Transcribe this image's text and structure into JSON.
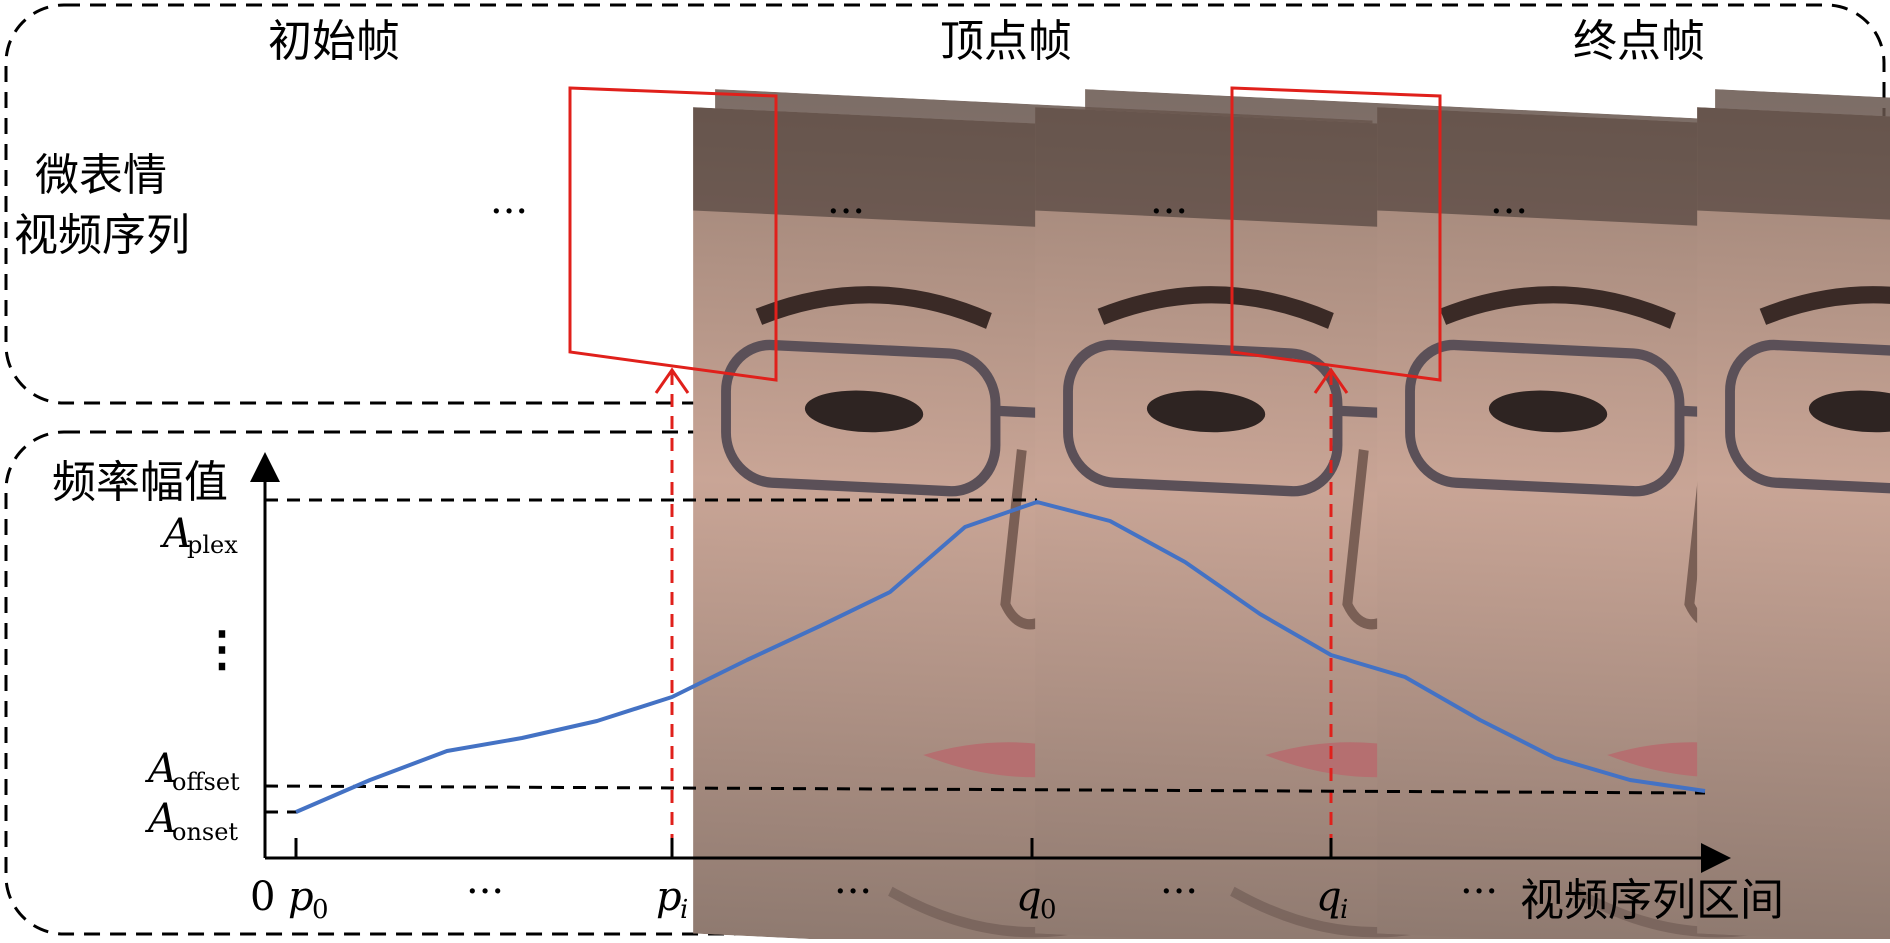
{
  "sequence_panel": {
    "row_label_line1": "微表情",
    "row_label_line2": "视频序列",
    "frame_titles": {
      "onset": "初始帧",
      "apex": "顶点帧",
      "offset": "终点帧"
    },
    "ellipsis": "···",
    "highlight_color": "#e0201b"
  },
  "graph_panel": {
    "y_axis_title": "频率幅值",
    "x_axis_title": "视频序列区间",
    "origin_label": "0",
    "vertical_ellipsis": "⋮",
    "ellipsis": "···",
    "y_labels": {
      "plex_base": "A",
      "plex_sub": "plex",
      "offset_base": "A",
      "offset_sub": "offset",
      "onset_base": "A",
      "onset_sub": "onset"
    },
    "x_labels": {
      "p0_base": "p",
      "p0_sub": "0",
      "pi_base": "p",
      "pi_sub": "i",
      "q0_base": "q",
      "q0_sub": "0",
      "qi_base": "q",
      "qi_sub": "i"
    },
    "curve_color": "#4472c4",
    "marker_color": "#e0201b"
  }
}
